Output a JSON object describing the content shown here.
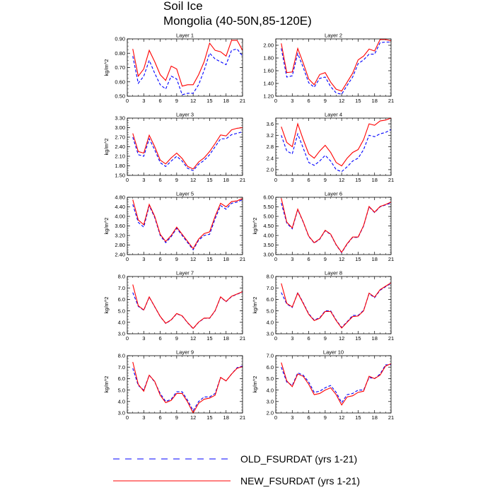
{
  "title": {
    "line1": "Soil Ice",
    "line2": "Mongolia (40-50N,85-120E)"
  },
  "legend": {
    "items": [
      {
        "label": "OLD_FSURDAT (yrs 1-21)",
        "color": "#0000ff",
        "dash": "dashed"
      },
      {
        "label": "NEW_FSURDAT (yrs 1-21)",
        "color": "#ff0000",
        "dash": "solid"
      }
    ]
  },
  "chart_data": [
    {
      "type": "line",
      "title": "Layer 1",
      "ylabel": "kg/m^2",
      "x": [
        1,
        2,
        3,
        4,
        5,
        6,
        7,
        8,
        9,
        10,
        11,
        12,
        13,
        14,
        15,
        16,
        17,
        18,
        19,
        20,
        21
      ],
      "xlim": [
        0,
        21
      ],
      "xticks": [
        0,
        3,
        6,
        9,
        12,
        15,
        18,
        21
      ],
      "ylim": [
        0.5,
        0.9
      ],
      "yticks": [
        "0.50",
        "0.60",
        "0.70",
        "0.80",
        "0.90"
      ],
      "series": [
        {
          "name": "OLD_FSURDAT (yrs 1-21)",
          "color": "#0000ff",
          "dash": "dashed",
          "values": [
            0.78,
            0.59,
            0.64,
            0.75,
            0.66,
            0.58,
            0.55,
            0.64,
            0.62,
            0.51,
            0.52,
            0.52,
            0.58,
            0.68,
            0.8,
            0.76,
            0.74,
            0.72,
            0.82,
            0.83,
            0.78
          ]
        },
        {
          "name": "NEW_FSURDAT (yrs 1-21)",
          "color": "#ff0000",
          "dash": "solid",
          "values": [
            0.83,
            0.64,
            0.69,
            0.82,
            0.74,
            0.65,
            0.61,
            0.71,
            0.69,
            0.57,
            0.58,
            0.58,
            0.65,
            0.74,
            0.87,
            0.82,
            0.81,
            0.78,
            0.89,
            0.89,
            0.82
          ]
        }
      ]
    },
    {
      "type": "line",
      "title": "Layer 2",
      "ylabel": "",
      "x": [
        1,
        2,
        3,
        4,
        5,
        6,
        7,
        8,
        9,
        10,
        11,
        12,
        13,
        14,
        15,
        16,
        17,
        18,
        19,
        20,
        21
      ],
      "xlim": [
        0,
        21
      ],
      "xticks": [
        0,
        3,
        6,
        9,
        12,
        15,
        18,
        21
      ],
      "ylim": [
        1.2,
        2.1
      ],
      "yticks": [
        "1.20",
        "1.40",
        "1.60",
        "1.80",
        "2.00"
      ],
      "series": [
        {
          "name": "OLD_FSURDAT (yrs 1-21)",
          "color": "#0000ff",
          "dash": "dashed",
          "values": [
            1.95,
            1.5,
            1.52,
            1.87,
            1.65,
            1.41,
            1.34,
            1.48,
            1.5,
            1.35,
            1.25,
            1.23,
            1.37,
            1.5,
            1.71,
            1.77,
            1.86,
            1.86,
            2.04,
            2.05,
            2.05
          ]
        },
        {
          "name": "NEW_FSURDAT (yrs 1-21)",
          "color": "#ff0000",
          "dash": "solid",
          "values": [
            2.03,
            1.57,
            1.58,
            1.95,
            1.72,
            1.47,
            1.38,
            1.54,
            1.57,
            1.42,
            1.31,
            1.28,
            1.42,
            1.56,
            1.77,
            1.83,
            1.94,
            1.91,
            2.09,
            2.09,
            2.07
          ]
        }
      ]
    },
    {
      "type": "line",
      "title": "Layer 3",
      "ylabel": "kg/m^2",
      "x": [
        1,
        2,
        3,
        4,
        5,
        6,
        7,
        8,
        9,
        10,
        11,
        12,
        13,
        14,
        15,
        16,
        17,
        18,
        19,
        20,
        21
      ],
      "xlim": [
        0,
        21
      ],
      "xticks": [
        0,
        3,
        6,
        9,
        12,
        15,
        18,
        21
      ],
      "ylim": [
        1.5,
        3.3
      ],
      "yticks": [
        "1.50",
        "1.80",
        "2.10",
        "2.40",
        "2.70",
        "3.00",
        "3.30"
      ],
      "series": [
        {
          "name": "OLD_FSURDAT (yrs 1-21)",
          "color": "#0000ff",
          "dash": "dashed",
          "values": [
            2.7,
            2.15,
            2.1,
            2.65,
            2.3,
            1.9,
            1.78,
            1.95,
            2.1,
            1.95,
            1.72,
            1.65,
            1.85,
            1.97,
            2.15,
            2.4,
            2.65,
            2.65,
            2.78,
            2.82,
            2.87
          ]
        },
        {
          "name": "NEW_FSURDAT (yrs 1-21)",
          "color": "#ff0000",
          "dash": "solid",
          "values": [
            2.82,
            2.25,
            2.2,
            2.76,
            2.4,
            1.98,
            1.86,
            2.05,
            2.2,
            2.03,
            1.78,
            1.7,
            1.92,
            2.05,
            2.25,
            2.5,
            2.77,
            2.74,
            2.93,
            2.98,
            3.0
          ]
        }
      ]
    },
    {
      "type": "line",
      "title": "Layer 4",
      "ylabel": "",
      "x": [
        1,
        2,
        3,
        4,
        5,
        6,
        7,
        8,
        9,
        10,
        11,
        12,
        13,
        14,
        15,
        16,
        17,
        18,
        19,
        20,
        21
      ],
      "xlim": [
        0,
        21
      ],
      "xticks": [
        0,
        3,
        6,
        9,
        12,
        15,
        18,
        21
      ],
      "ylim": [
        1.8,
        3.8
      ],
      "yticks": [
        "2.0",
        "2.4",
        "2.8",
        "3.2",
        "3.6"
      ],
      "series": [
        {
          "name": "OLD_FSURDAT (yrs 1-21)",
          "color": "#0000ff",
          "dash": "dashed",
          "values": [
            3.2,
            2.65,
            2.55,
            3.25,
            2.75,
            2.25,
            2.15,
            2.3,
            2.5,
            2.3,
            2.0,
            1.93,
            2.1,
            2.3,
            2.4,
            2.7,
            3.2,
            3.15,
            3.25,
            3.3,
            3.4
          ]
        },
        {
          "name": "NEW_FSURDAT (yrs 1-21)",
          "color": "#ff0000",
          "dash": "solid",
          "values": [
            3.5,
            2.95,
            2.8,
            3.6,
            3.05,
            2.55,
            2.4,
            2.65,
            2.85,
            2.6,
            2.25,
            2.13,
            2.4,
            2.6,
            2.7,
            3.05,
            3.6,
            3.55,
            3.7,
            3.73,
            3.8
          ]
        }
      ]
    },
    {
      "type": "line",
      "title": "Layer 5",
      "ylabel": "kg/m^2",
      "x": [
        1,
        2,
        3,
        4,
        5,
        6,
        7,
        8,
        9,
        10,
        11,
        12,
        13,
        14,
        15,
        16,
        17,
        18,
        19,
        20,
        21
      ],
      "xlim": [
        0,
        21
      ],
      "xticks": [
        0,
        3,
        6,
        9,
        12,
        15,
        18,
        21
      ],
      "ylim": [
        2.4,
        4.8
      ],
      "yticks": [
        "2.40",
        "2.80",
        "3.20",
        "3.60",
        "4.00",
        "4.40",
        "4.80"
      ],
      "series": [
        {
          "name": "OLD_FSURDAT (yrs 1-21)",
          "color": "#0000ff",
          "dash": "dashed",
          "values": [
            4.5,
            3.75,
            3.55,
            4.45,
            3.95,
            3.2,
            2.9,
            3.15,
            3.5,
            3.2,
            2.9,
            2.6,
            3.0,
            3.2,
            3.25,
            3.9,
            4.45,
            4.3,
            4.55,
            4.6,
            4.7
          ]
        },
        {
          "name": "NEW_FSURDAT (yrs 1-21)",
          "color": "#ff0000",
          "dash": "solid",
          "values": [
            4.7,
            3.85,
            3.65,
            4.5,
            4.0,
            3.25,
            2.95,
            3.2,
            3.55,
            3.25,
            2.95,
            2.65,
            3.05,
            3.28,
            3.35,
            4.0,
            4.55,
            4.4,
            4.62,
            4.65,
            4.75
          ]
        }
      ]
    },
    {
      "type": "line",
      "title": "Layer 6",
      "ylabel": "kg/m^2",
      "x": [
        1,
        2,
        3,
        4,
        5,
        6,
        7,
        8,
        9,
        10,
        11,
        12,
        13,
        14,
        15,
        16,
        17,
        18,
        19,
        20,
        21
      ],
      "xlim": [
        0,
        21
      ],
      "xticks": [
        0,
        3,
        6,
        9,
        12,
        15,
        18,
        21
      ],
      "ylim": [
        3.0,
        6.0
      ],
      "yticks": [
        "3.00",
        "3.50",
        "4.00",
        "4.50",
        "5.00",
        "5.50",
        "6.00"
      ],
      "series": [
        {
          "name": "OLD_FSURDAT (yrs 1-21)",
          "color": "#0000ff",
          "dash": "dashed",
          "values": [
            5.7,
            4.65,
            4.35,
            5.35,
            4.7,
            3.95,
            3.6,
            3.8,
            4.25,
            4.05,
            3.5,
            3.1,
            3.55,
            3.9,
            3.9,
            4.5,
            5.5,
            5.2,
            5.5,
            5.6,
            5.7
          ]
        },
        {
          "name": "NEW_FSURDAT (yrs 1-21)",
          "color": "#ff0000",
          "dash": "solid",
          "values": [
            5.95,
            4.7,
            4.4,
            5.38,
            4.72,
            3.97,
            3.62,
            3.82,
            4.27,
            4.07,
            3.52,
            3.12,
            3.57,
            3.92,
            3.92,
            4.52,
            5.52,
            5.22,
            5.52,
            5.62,
            5.75
          ]
        }
      ]
    },
    {
      "type": "line",
      "title": "Layer 7",
      "ylabel": "kg/m^2",
      "x": [
        1,
        2,
        3,
        4,
        5,
        6,
        7,
        8,
        9,
        10,
        11,
        12,
        13,
        14,
        15,
        16,
        17,
        18,
        19,
        20,
        21
      ],
      "xlim": [
        0,
        21
      ],
      "xticks": [
        0,
        3,
        6,
        9,
        12,
        15,
        18,
        21
      ],
      "ylim": [
        3.0,
        8.0
      ],
      "yticks": [
        "3.0",
        "4.0",
        "5.0",
        "6.0",
        "7.0",
        "8.0"
      ],
      "series": [
        {
          "name": "OLD_FSURDAT (yrs 1-21)",
          "color": "#0000ff",
          "dash": "dashed",
          "values": [
            6.6,
            5.4,
            5.05,
            6.2,
            5.35,
            4.5,
            3.9,
            4.2,
            4.75,
            4.55,
            3.95,
            3.45,
            4.0,
            4.35,
            4.35,
            5.0,
            6.2,
            5.8,
            6.25,
            6.45,
            6.65
          ]
        },
        {
          "name": "NEW_FSURDAT (yrs 1-21)",
          "color": "#ff0000",
          "dash": "solid",
          "values": [
            7.3,
            5.45,
            5.08,
            6.22,
            5.37,
            4.52,
            3.92,
            4.22,
            4.77,
            4.57,
            3.97,
            3.47,
            4.02,
            4.37,
            4.37,
            5.02,
            6.22,
            5.82,
            6.27,
            6.47,
            6.67
          ]
        }
      ]
    },
    {
      "type": "line",
      "title": "Layer 8",
      "ylabel": "kg/m^2",
      "x": [
        1,
        2,
        3,
        4,
        5,
        6,
        7,
        8,
        9,
        10,
        11,
        12,
        13,
        14,
        15,
        16,
        17,
        18,
        19,
        20,
        21
      ],
      "xlim": [
        0,
        21
      ],
      "xticks": [
        0,
        3,
        6,
        9,
        12,
        15,
        18,
        21
      ],
      "ylim": [
        3.0,
        8.0
      ],
      "yticks": [
        "3.0",
        "4.0",
        "5.0",
        "6.0",
        "7.0",
        "8.0"
      ],
      "series": [
        {
          "name": "OLD_FSURDAT (yrs 1-21)",
          "color": "#0000ff",
          "dash": "dashed",
          "values": [
            6.6,
            5.6,
            5.3,
            6.6,
            5.7,
            4.75,
            4.2,
            4.4,
            5.0,
            5.0,
            4.2,
            3.55,
            4.05,
            4.6,
            4.6,
            5.05,
            6.5,
            6.15,
            6.8,
            7.1,
            7.4
          ]
        },
        {
          "name": "NEW_FSURDAT (yrs 1-21)",
          "color": "#ff0000",
          "dash": "solid",
          "values": [
            7.4,
            5.65,
            5.35,
            6.55,
            5.65,
            4.7,
            4.15,
            4.35,
            4.95,
            4.95,
            4.15,
            3.5,
            4.0,
            4.5,
            4.55,
            5.0,
            6.55,
            6.2,
            6.85,
            7.15,
            7.45
          ]
        }
      ]
    },
    {
      "type": "line",
      "title": "Layer 9",
      "ylabel": "kg/m^2",
      "x": [
        1,
        2,
        3,
        4,
        5,
        6,
        7,
        8,
        9,
        10,
        11,
        12,
        13,
        14,
        15,
        16,
        17,
        18,
        19,
        20,
        21
      ],
      "xlim": [
        0,
        21
      ],
      "xticks": [
        0,
        3,
        6,
        9,
        12,
        15,
        18,
        21
      ],
      "ylim": [
        3.0,
        8.0
      ],
      "yticks": [
        "3.0",
        "4.0",
        "5.0",
        "6.0",
        "7.0",
        "8.0"
      ],
      "series": [
        {
          "name": "OLD_FSURDAT (yrs 1-21)",
          "color": "#0000ff",
          "dash": "dashed",
          "values": [
            6.9,
            5.4,
            5.0,
            6.3,
            5.7,
            4.7,
            4.0,
            4.2,
            4.85,
            4.85,
            4.1,
            3.2,
            4.0,
            4.4,
            4.4,
            4.7,
            6.1,
            5.8,
            6.4,
            6.95,
            7.1
          ]
        },
        {
          "name": "NEW_FSURDAT (yrs 1-21)",
          "color": "#ff0000",
          "dash": "solid",
          "values": [
            7.45,
            5.5,
            4.9,
            6.3,
            5.75,
            4.55,
            3.9,
            4.1,
            4.7,
            4.7,
            3.95,
            3.0,
            3.85,
            4.2,
            4.3,
            4.55,
            6.1,
            5.8,
            6.4,
            6.9,
            7.05
          ]
        }
      ]
    },
    {
      "type": "line",
      "title": "Layer 10",
      "ylabel": "kg/m^2",
      "x": [
        1,
        2,
        3,
        4,
        5,
        6,
        7,
        8,
        9,
        10,
        11,
        12,
        13,
        14,
        15,
        16,
        17,
        18,
        19,
        20,
        21
      ],
      "xlim": [
        0,
        21
      ],
      "xticks": [
        0,
        3,
        6,
        9,
        12,
        15,
        18,
        21
      ],
      "ylim": [
        2.0,
        7.0
      ],
      "yticks": [
        "2.0",
        "3.0",
        "4.0",
        "5.0",
        "6.0",
        "7.0"
      ],
      "series": [
        {
          "name": "OLD_FSURDAT (yrs 1-21)",
          "color": "#0000ff",
          "dash": "dashed",
          "values": [
            6.0,
            4.7,
            4.4,
            5.5,
            5.3,
            4.7,
            3.8,
            3.9,
            4.2,
            4.4,
            3.8,
            2.9,
            3.6,
            3.7,
            4.0,
            4.0,
            5.1,
            5.0,
            5.4,
            6.2,
            6.2
          ]
        },
        {
          "name": "NEW_FSURDAT (yrs 1-21)",
          "color": "#ff0000",
          "dash": "solid",
          "values": [
            6.4,
            4.8,
            4.3,
            5.4,
            5.2,
            4.5,
            3.6,
            3.7,
            4.0,
            4.2,
            3.6,
            2.7,
            3.4,
            3.5,
            3.8,
            3.9,
            5.2,
            5.0,
            5.3,
            6.1,
            6.3
          ]
        }
      ]
    }
  ]
}
